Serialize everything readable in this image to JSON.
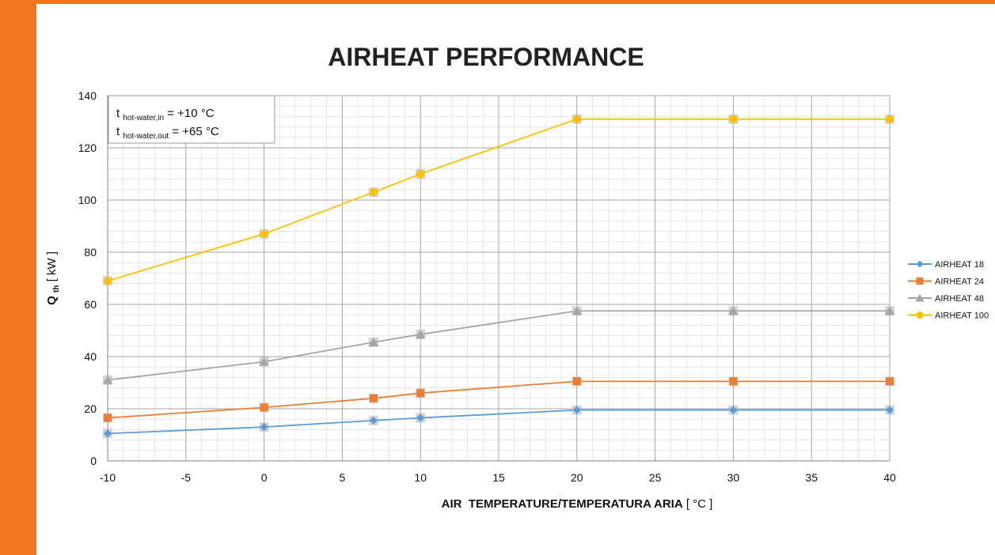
{
  "colors": {
    "accent_bar": "#f37421",
    "series": [
      "#5b9bd5",
      "#ed7d31",
      "#a5a5a5",
      "#ffc000"
    ]
  },
  "chart_data": {
    "type": "line",
    "title": "AIRHEAT PERFORMANCE",
    "xlabel": {
      "bold": "AIR  TEMPERATURE/TEMPERATURA ARIA",
      "unit": " [ °C ]"
    },
    "ylabel": {
      "main": "Q",
      "sub": "th",
      "unit": " [ kW ]"
    },
    "xlim": [
      -10,
      40
    ],
    "ylim": [
      0,
      140
    ],
    "x_ticks": [
      -10,
      -5,
      0,
      5,
      10,
      15,
      20,
      25,
      30,
      35,
      40
    ],
    "y_ticks": [
      0,
      20,
      40,
      60,
      80,
      100,
      120,
      140
    ],
    "grid": "major and minor",
    "legend_position": "right",
    "annotation": {
      "line1": {
        "t": "t",
        "sub": "hot-water,in",
        "rest": " = +10 °C"
      },
      "line2": {
        "t": "t",
        "sub": "hot-water,out",
        "rest": " = +65 °C"
      }
    },
    "x": [
      -10,
      0,
      7,
      10,
      20,
      30,
      40
    ],
    "series": [
      {
        "name": "AIRHEAT 18",
        "marker": "diamond",
        "values": [
          10.5,
          13,
          15.5,
          16.5,
          19.5,
          19.5,
          19.5
        ]
      },
      {
        "name": "AIRHEAT 24",
        "marker": "square",
        "values": [
          16.5,
          20.5,
          24,
          26,
          30.5,
          30.5,
          30.5
        ]
      },
      {
        "name": "AIRHEAT 48",
        "marker": "triangle",
        "values": [
          31,
          38,
          45.5,
          48.5,
          57.5,
          57.5,
          57.5
        ]
      },
      {
        "name": "AIRHEAT 100",
        "marker": "circle",
        "values": [
          69,
          87,
          103,
          110,
          131,
          131,
          131
        ]
      }
    ]
  }
}
